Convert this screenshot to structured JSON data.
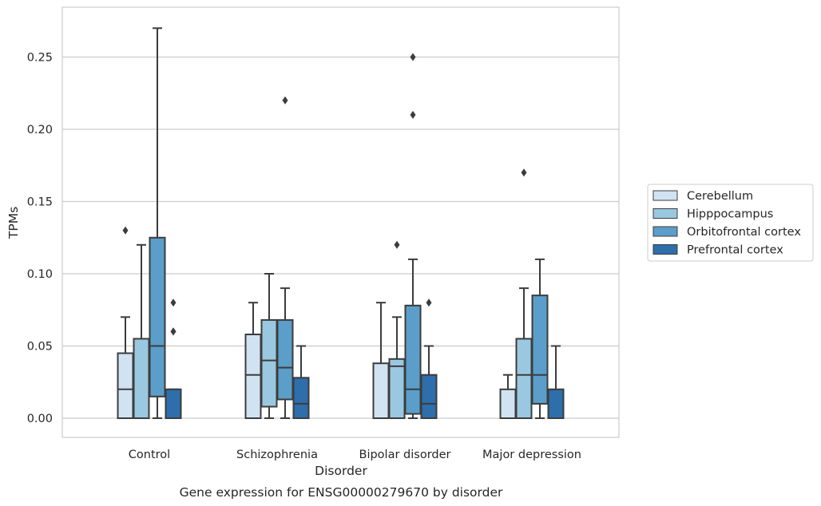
{
  "chart_data": {
    "type": "box",
    "caption": "Gene expression for ENSG00000279670 by disorder",
    "xlabel": "Disorder",
    "ylabel": "TPMs",
    "ylim": [
      -0.013,
      0.285
    ],
    "yticks": [
      0.0,
      0.05,
      0.1,
      0.15,
      0.2,
      0.25
    ],
    "ytick_labels": [
      "0.00",
      "0.05",
      "0.10",
      "0.15",
      "0.20",
      "0.25"
    ],
    "grid": true,
    "legend_position": "right",
    "categories": [
      "Control",
      "Schizophrenia",
      "Bipolar disorder",
      "Major depression"
    ],
    "series": [
      {
        "name": "Cerebellum",
        "color": "#d1e2f2",
        "boxes": [
          {
            "whislo": 0.0,
            "q1": 0.0,
            "med": 0.02,
            "q3": 0.045,
            "whishi": 0.07,
            "fliers": [
              0.13
            ]
          },
          {
            "whislo": 0.0,
            "q1": 0.0,
            "med": 0.03,
            "q3": 0.058,
            "whishi": 0.08,
            "fliers": []
          },
          {
            "whislo": 0.0,
            "q1": 0.0,
            "med": 0.0,
            "q3": 0.038,
            "whishi": 0.08,
            "fliers": []
          },
          {
            "whislo": 0.0,
            "q1": 0.0,
            "med": 0.0,
            "q3": 0.02,
            "whishi": 0.03,
            "fliers": []
          }
        ]
      },
      {
        "name": "Hipppocampus",
        "color": "#9ac8e0",
        "boxes": [
          {
            "whislo": 0.0,
            "q1": 0.0,
            "med": 0.0,
            "q3": 0.055,
            "whishi": 0.12,
            "fliers": []
          },
          {
            "whislo": 0.0,
            "q1": 0.008,
            "med": 0.04,
            "q3": 0.068,
            "whishi": 0.1,
            "fliers": []
          },
          {
            "whislo": 0.0,
            "q1": 0.0,
            "med": 0.036,
            "q3": 0.041,
            "whishi": 0.07,
            "fliers": [
              0.12
            ]
          },
          {
            "whislo": 0.0,
            "q1": 0.0,
            "med": 0.03,
            "q3": 0.055,
            "whishi": 0.09,
            "fliers": [
              0.17
            ]
          }
        ]
      },
      {
        "name": "Orbitofrontal cortex",
        "color": "#5b9ec9",
        "boxes": [
          {
            "whislo": 0.0,
            "q1": 0.015,
            "med": 0.05,
            "q3": 0.125,
            "whishi": 0.27,
            "fliers": []
          },
          {
            "whislo": 0.0,
            "q1": 0.013,
            "med": 0.035,
            "q3": 0.068,
            "whishi": 0.09,
            "fliers": [
              0.22
            ]
          },
          {
            "whislo": 0.0,
            "q1": 0.003,
            "med": 0.02,
            "q3": 0.078,
            "whishi": 0.11,
            "fliers": [
              0.21,
              0.25
            ]
          },
          {
            "whislo": 0.0,
            "q1": 0.01,
            "med": 0.03,
            "q3": 0.085,
            "whishi": 0.11,
            "fliers": []
          }
        ]
      },
      {
        "name": "Prefrontal cortex",
        "color": "#2d6eab",
        "boxes": [
          {
            "whislo": 0.0,
            "q1": 0.0,
            "med": 0.0,
            "q3": 0.02,
            "whishi": 0.02,
            "fliers": [
              0.06,
              0.06,
              0.08
            ]
          },
          {
            "whislo": 0.0,
            "q1": 0.0,
            "med": 0.01,
            "q3": 0.028,
            "whishi": 0.05,
            "fliers": []
          },
          {
            "whislo": 0.0,
            "q1": 0.0,
            "med": 0.01,
            "q3": 0.03,
            "whishi": 0.05,
            "fliers": [
              0.08
            ]
          },
          {
            "whislo": 0.0,
            "q1": 0.0,
            "med": 0.0,
            "q3": 0.02,
            "whishi": 0.05,
            "fliers": []
          }
        ]
      }
    ]
  }
}
